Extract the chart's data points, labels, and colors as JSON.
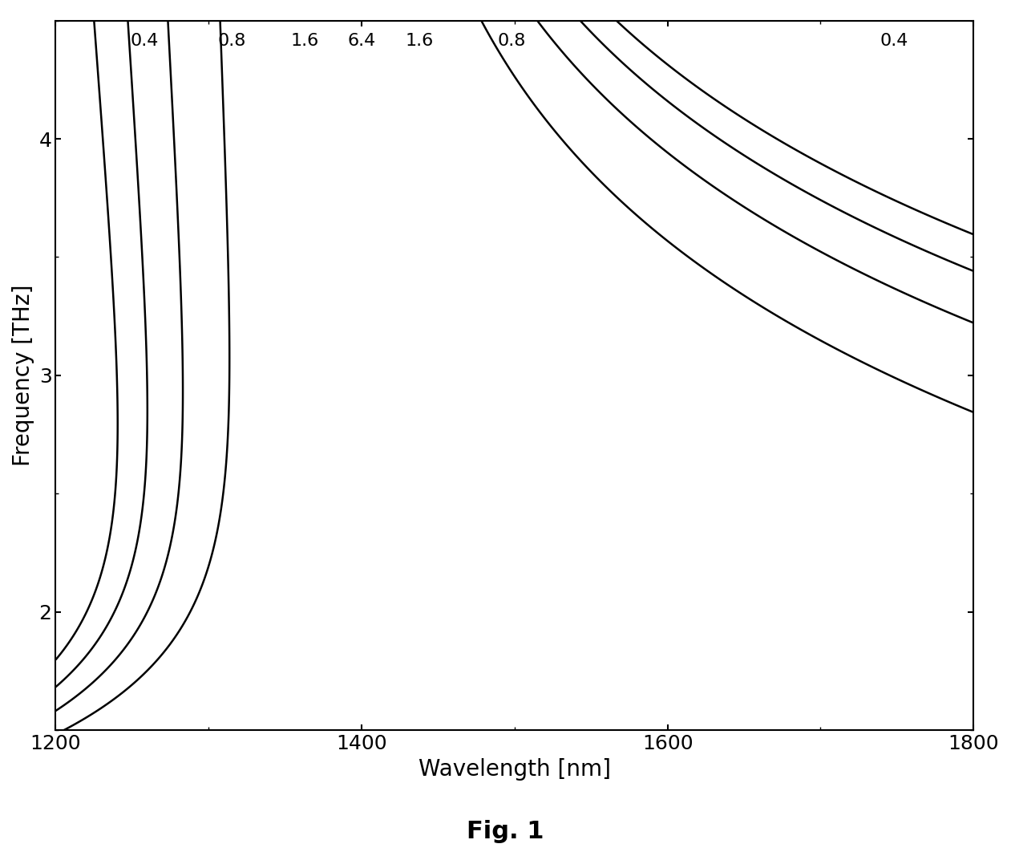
{
  "xlabel": "Wavelength [nm]",
  "ylabel": "Frequency [THz]",
  "title": "Fig. 1",
  "xlim": [
    1200,
    1800
  ],
  "ylim": [
    1.5,
    4.5
  ],
  "xticks": [
    1200,
    1400,
    1600,
    1800
  ],
  "yticks": [
    2,
    3,
    4
  ],
  "background_color": "#ffffff",
  "line_color": "#000000",
  "figsize": [
    12.61,
    10.62
  ],
  "dpi": 100,
  "label_positions": [
    [
      1258,
      4.38,
      "0.4"
    ],
    [
      1315,
      4.38,
      "0.8"
    ],
    [
      1363,
      4.38,
      "1.6"
    ],
    [
      1400,
      4.38,
      "6.4"
    ],
    [
      1438,
      4.38,
      "1.6"
    ],
    [
      1498,
      4.38,
      "0.8"
    ],
    [
      1748,
      4.38,
      "0.4"
    ]
  ]
}
